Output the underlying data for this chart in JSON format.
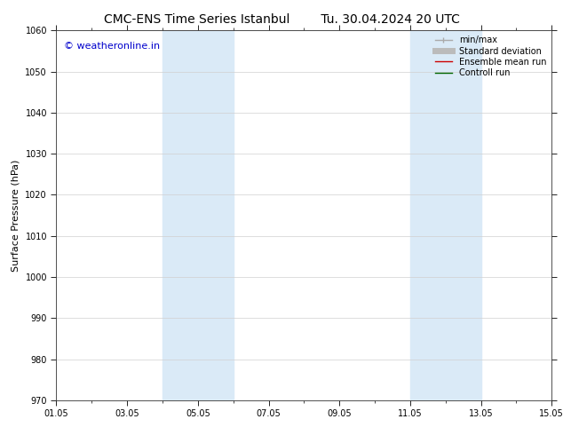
{
  "title_left": "CMC-ENS Time Series Istanbul",
  "title_right": "Tu. 30.04.2024 20 UTC",
  "ylabel": "Surface Pressure (hPa)",
  "ylim": [
    970,
    1060
  ],
  "yticks": [
    970,
    980,
    990,
    1000,
    1010,
    1020,
    1030,
    1040,
    1050,
    1060
  ],
  "xtick_labels": [
    "01.05",
    "03.05",
    "05.05",
    "07.05",
    "09.05",
    "11.05",
    "13.05",
    "15.05"
  ],
  "xtick_positions": [
    0,
    2,
    4,
    6,
    8,
    10,
    12,
    14
  ],
  "xlim": [
    0,
    14
  ],
  "shaded_bands": [
    {
      "x_start": 3.0,
      "x_end": 4.0
    },
    {
      "x_start": 4.0,
      "x_end": 5.0
    },
    {
      "x_start": 10.0,
      "x_end": 11.0
    },
    {
      "x_start": 11.0,
      "x_end": 12.0
    }
  ],
  "shaded_color": "#daeaf7",
  "watermark_text": "© weatheronline.in",
  "watermark_color": "#0000cc",
  "watermark_fontsize": 8,
  "legend_entries": [
    {
      "label": "min/max",
      "color": "#aaaaaa",
      "lw": 1.0
    },
    {
      "label": "Standard deviation",
      "color": "#bbbbbb",
      "lw": 5
    },
    {
      "label": "Ensemble mean run",
      "color": "#cc0000",
      "lw": 1.0
    },
    {
      "label": "Controll run",
      "color": "#006600",
      "lw": 1.0
    }
  ],
  "bg_color": "#ffffff",
  "grid_color": "#d0d0d0",
  "title_fontsize": 10,
  "ylabel_fontsize": 8,
  "tick_fontsize": 7,
  "legend_fontsize": 7
}
